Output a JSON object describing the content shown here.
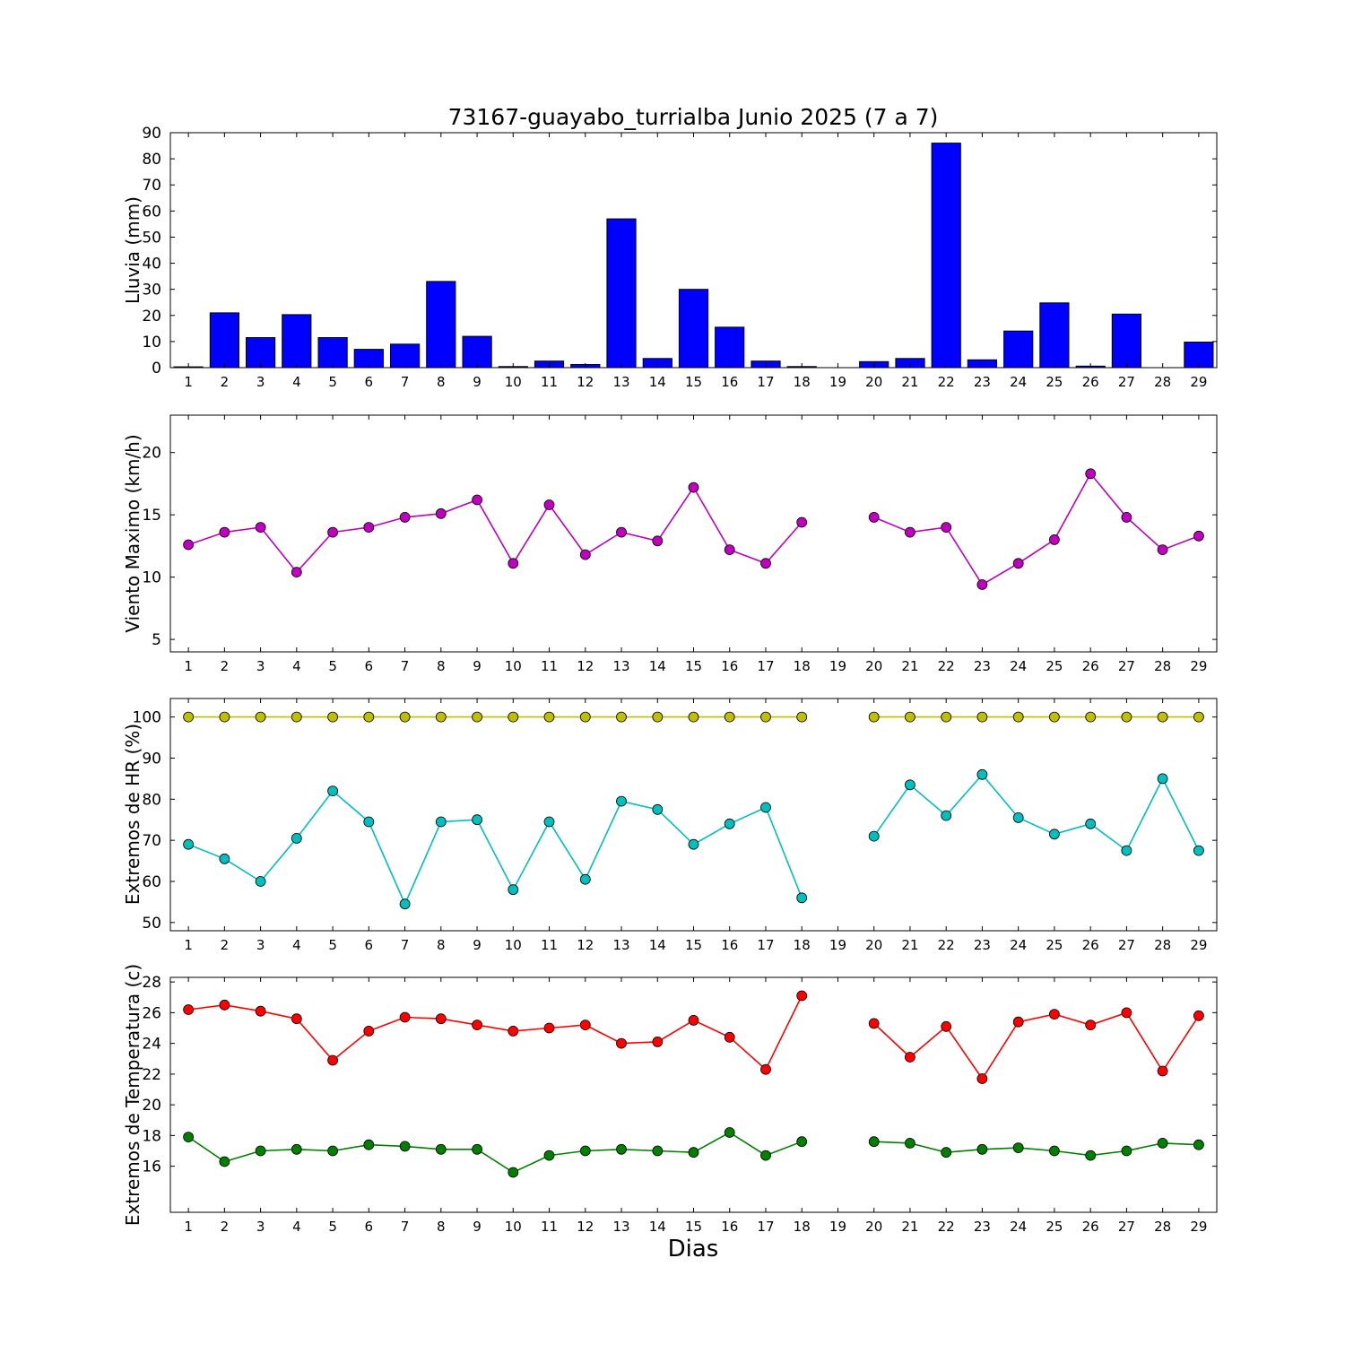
{
  "figure": {
    "title": "73167-guayabo_turrialba Junio 2025  (7 a 7)",
    "xlabel": "Dias",
    "background": "#ffffff",
    "days": [
      1,
      2,
      3,
      4,
      5,
      6,
      7,
      8,
      9,
      10,
      11,
      12,
      13,
      14,
      15,
      16,
      17,
      18,
      19,
      20,
      21,
      22,
      23,
      24,
      25,
      26,
      27,
      28,
      29
    ]
  },
  "chart_data": [
    {
      "id": "lluvia",
      "type": "bar",
      "ylabel": "Lluvia (mm)",
      "xlabel": "",
      "categories": [
        1,
        2,
        3,
        4,
        5,
        6,
        7,
        8,
        9,
        10,
        11,
        12,
        13,
        14,
        15,
        16,
        17,
        18,
        19,
        20,
        21,
        22,
        23,
        24,
        25,
        26,
        27,
        28,
        29
      ],
      "values": [
        0.3,
        21,
        11.5,
        20.3,
        11.5,
        7,
        9,
        33,
        12,
        0.4,
        2.5,
        1.2,
        57,
        3.5,
        30,
        15.5,
        2.5,
        0.4,
        0,
        2.3,
        3.5,
        86,
        3,
        14,
        24.8,
        0.6,
        20.5,
        0,
        9.8
      ],
      "ylim": [
        0,
        90
      ],
      "yticks": [
        0,
        10,
        20,
        30,
        40,
        50,
        60,
        70,
        80,
        90
      ],
      "bar_color": "#0000ff",
      "bar_edge_color": "#000000",
      "grid": false
    },
    {
      "id": "viento",
      "type": "line",
      "ylabel": "Viento Maximo (km/h)",
      "xlabel": "",
      "x": [
        1,
        2,
        3,
        4,
        5,
        6,
        7,
        8,
        9,
        10,
        11,
        12,
        13,
        14,
        15,
        16,
        17,
        18,
        19,
        20,
        21,
        22,
        23,
        24,
        25,
        26,
        27,
        28,
        29
      ],
      "series": [
        {
          "name": "viento_maximo",
          "color": "#bf00bf",
          "values": [
            12.6,
            13.6,
            14.0,
            10.4,
            13.6,
            14.0,
            14.8,
            15.1,
            16.2,
            11.1,
            15.8,
            11.8,
            13.6,
            12.9,
            17.2,
            12.2,
            11.1,
            14.4,
            null,
            14.8,
            13.6,
            14.0,
            9.4,
            11.1,
            13.0,
            18.3,
            14.8,
            12.2,
            13.3
          ]
        }
      ],
      "ylim": [
        4,
        23
      ],
      "yticks": [
        5,
        10,
        15,
        20
      ],
      "grid": false,
      "legend": "none"
    },
    {
      "id": "hr",
      "type": "line",
      "ylabel": "Extremos de HR (%)",
      "xlabel": "",
      "x": [
        1,
        2,
        3,
        4,
        5,
        6,
        7,
        8,
        9,
        10,
        11,
        12,
        13,
        14,
        15,
        16,
        17,
        18,
        19,
        20,
        21,
        22,
        23,
        24,
        25,
        26,
        27,
        28,
        29
      ],
      "series": [
        {
          "name": "hr_maxima",
          "color": "#bfbf00",
          "values": [
            100,
            100,
            100,
            100,
            100,
            100,
            100,
            100,
            100,
            100,
            100,
            100,
            100,
            100,
            100,
            100,
            100,
            100,
            null,
            100,
            100,
            100,
            100,
            100,
            100,
            100,
            100,
            100,
            100
          ]
        },
        {
          "name": "hr_minima",
          "color": "#00bfbf",
          "values": [
            69,
            65.5,
            60,
            70.5,
            82,
            74.5,
            54.5,
            74.5,
            75,
            58,
            74.5,
            60.5,
            79.5,
            77.5,
            69,
            74,
            78,
            56,
            null,
            71,
            83.5,
            76,
            86,
            75.5,
            71.5,
            74,
            67.5,
            85,
            67.5
          ]
        }
      ],
      "ylim": [
        48,
        104.5
      ],
      "yticks": [
        50,
        60,
        70,
        80,
        90,
        100
      ],
      "grid": false,
      "legend": "none"
    },
    {
      "id": "temperatura",
      "type": "line",
      "ylabel": "Extremos de Temperatura (c)",
      "xlabel": "Dias",
      "x": [
        1,
        2,
        3,
        4,
        5,
        6,
        7,
        8,
        9,
        10,
        11,
        12,
        13,
        14,
        15,
        16,
        17,
        18,
        19,
        20,
        21,
        22,
        23,
        24,
        25,
        26,
        27,
        28,
        29
      ],
      "series": [
        {
          "name": "temperatura_maxima",
          "color": "#ff0000",
          "values": [
            26.2,
            26.5,
            26.1,
            25.6,
            22.9,
            24.8,
            25.7,
            25.6,
            25.2,
            24.8,
            25.0,
            25.2,
            24.0,
            24.1,
            25.5,
            24.4,
            22.3,
            27.1,
            null,
            25.3,
            23.1,
            25.1,
            21.7,
            25.4,
            25.9,
            25.2,
            26.0,
            22.2,
            25.8
          ]
        },
        {
          "name": "temperatura_minima",
          "color": "#007f00",
          "values": [
            17.9,
            16.3,
            17.0,
            17.1,
            17.0,
            17.4,
            17.3,
            17.1,
            17.1,
            15.6,
            16.7,
            17.0,
            17.1,
            17.0,
            16.9,
            18.2,
            16.7,
            17.6,
            null,
            17.6,
            17.5,
            16.9,
            17.1,
            17.2,
            17.0,
            16.7,
            17.0,
            17.5,
            17.4
          ]
        }
      ],
      "ylim": [
        13,
        28.3
      ],
      "yticks": [
        16,
        18,
        20,
        22,
        24,
        26,
        28
      ],
      "grid": false,
      "legend": "none"
    }
  ]
}
